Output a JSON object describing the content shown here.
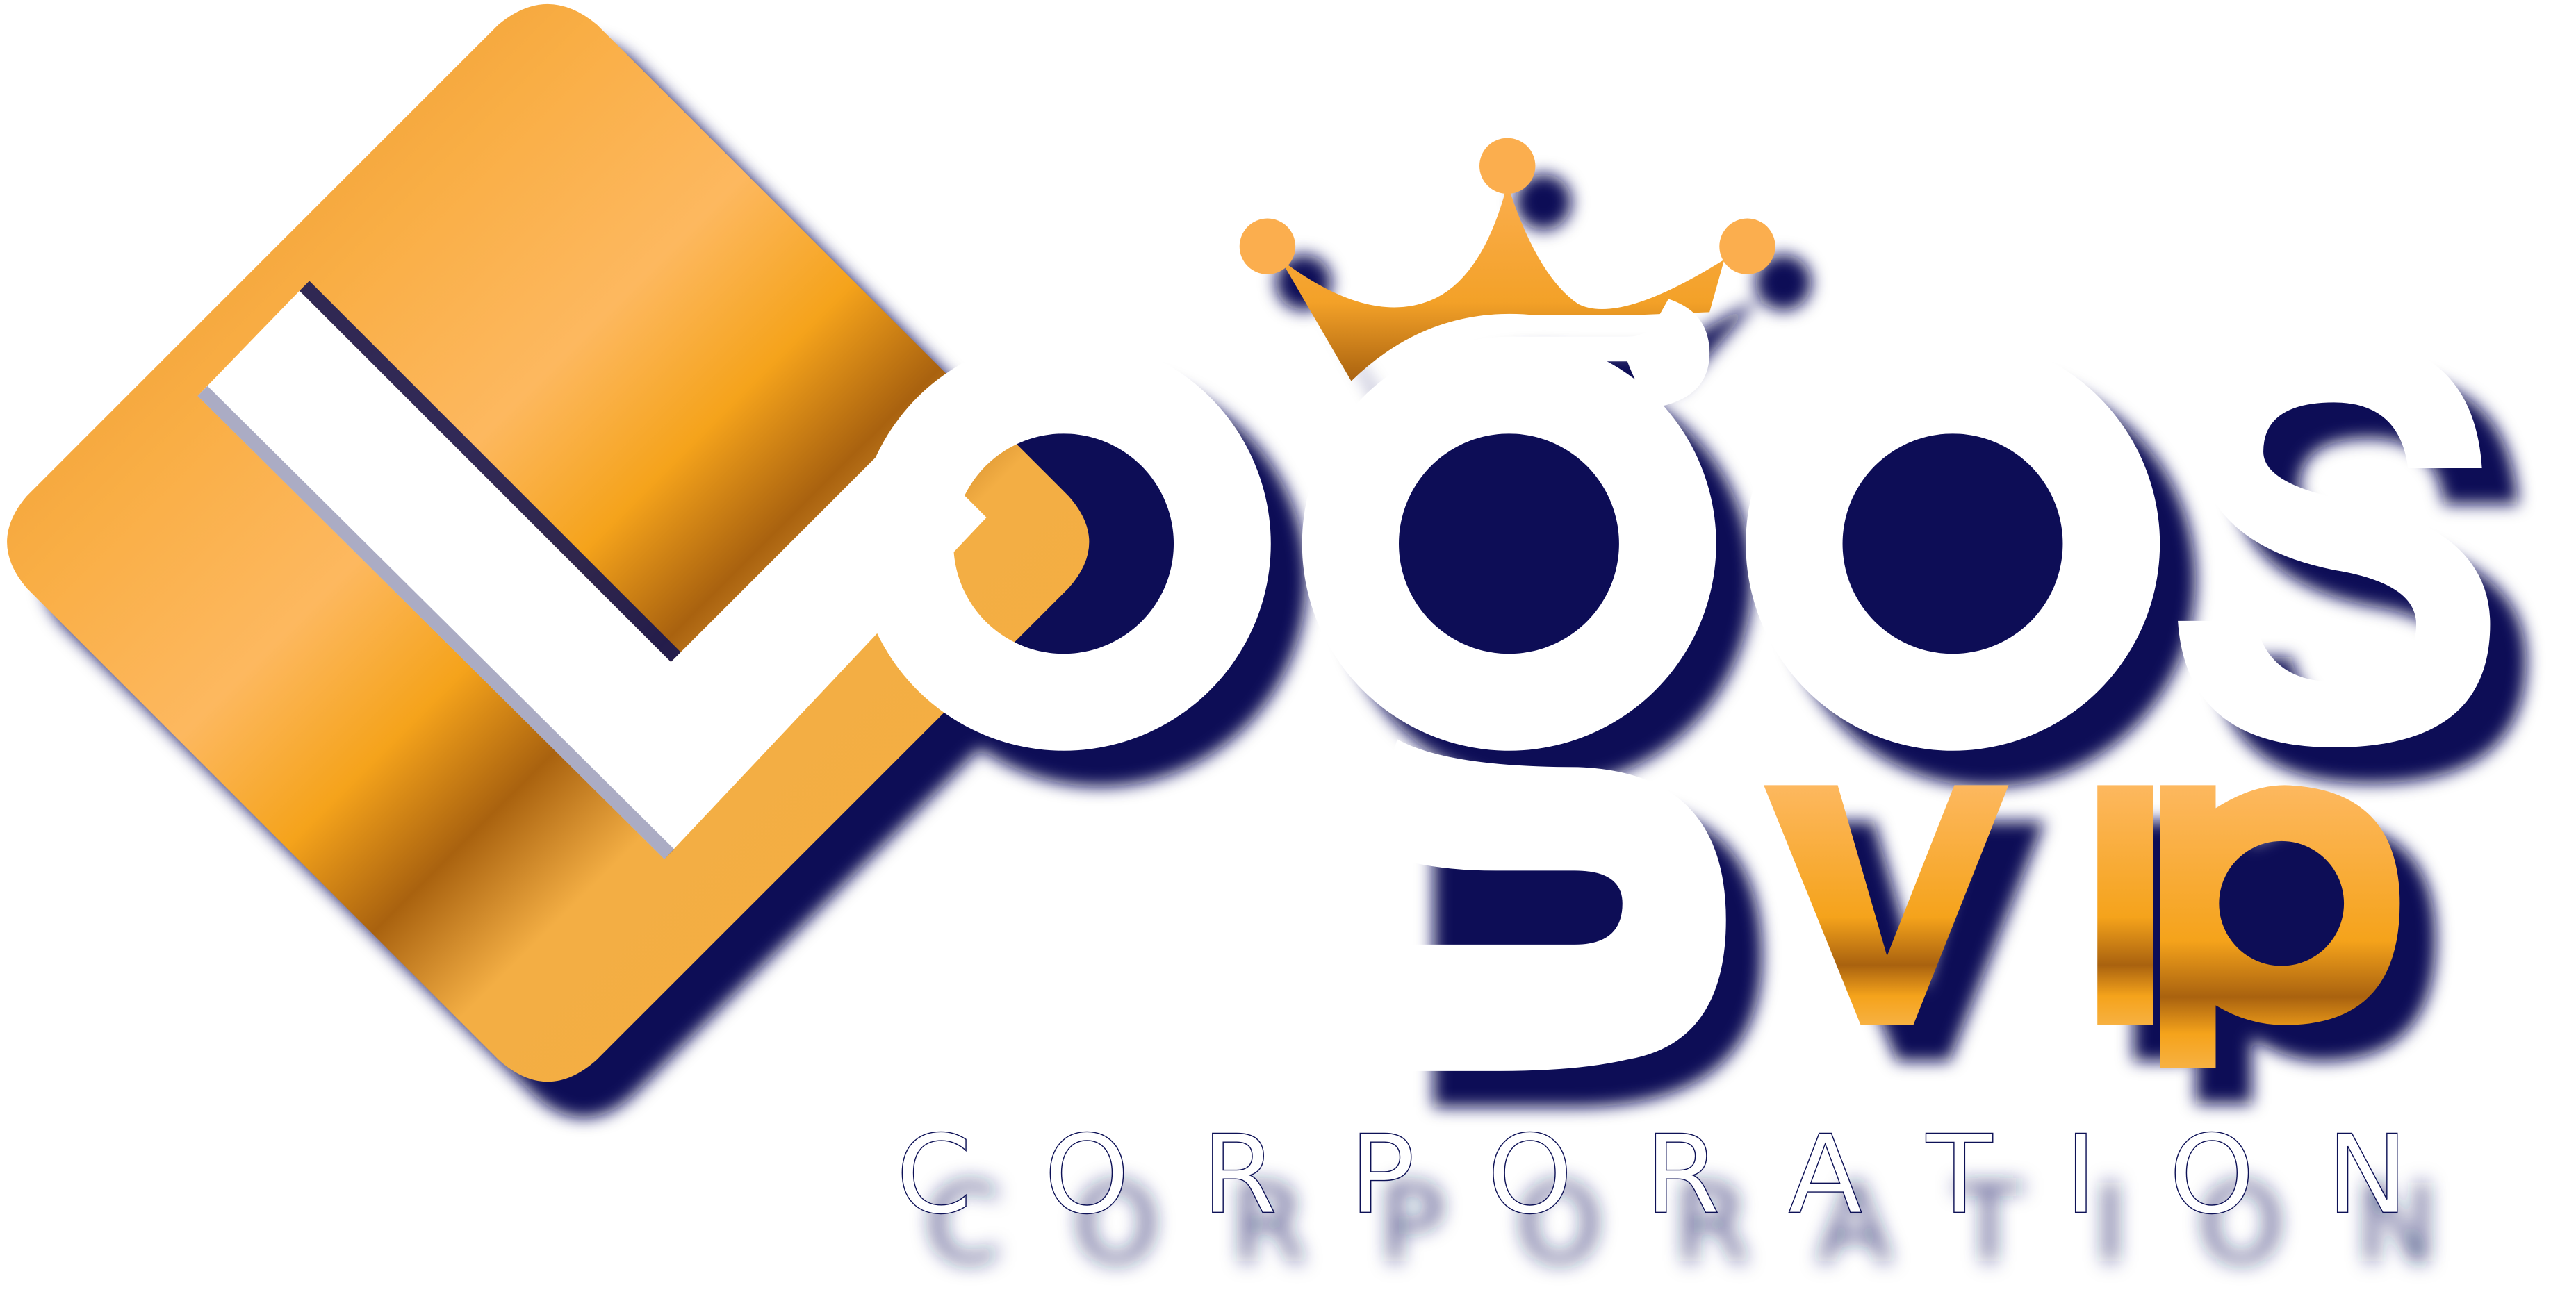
{
  "logo": {
    "wordmark": "Logos",
    "badge": "vip",
    "tagline": "CORPORATION",
    "colors": {
      "gold_light": "#FDB85F",
      "gold_mid": "#F5A31B",
      "gold_dark": "#A9620F",
      "gold_base": "#EA962B",
      "shadow_navy": "#0D1156",
      "letter_white": "#FFFFFF"
    },
    "icons": [
      "diamond-l-mark",
      "crown-icon"
    ]
  }
}
